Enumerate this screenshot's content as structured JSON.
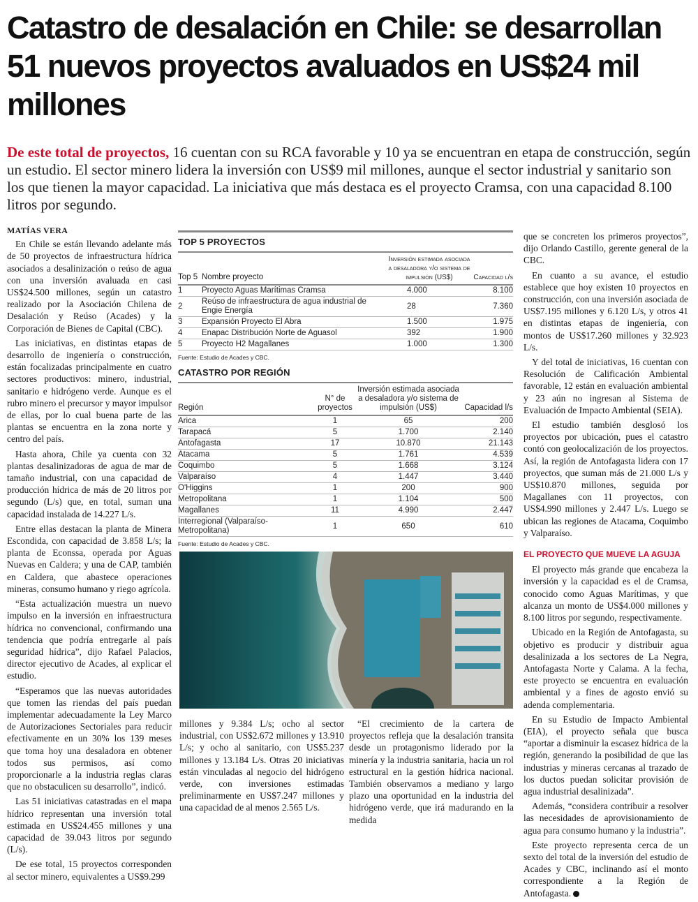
{
  "article": {
    "title": "Catastro de desalación en Chile: se desarrollan 51 nuevos proyectos avaluados en US$24 mil millones",
    "lead_highlight": "De este total de proyectos,",
    "lead_text": " 16 cuentan con su RCA favorable y 10 ya se encuentran en etapa de construcción, según un estudio. El sector minero lidera la inversión con US$9 mil millones, aunque el sector industrial y sanitario son los que tienen la mayor capacidad. La iniciativa que más destaca es el proyecto Cramsa, con una capacidad 8.100 litros por segundo.",
    "byline": "MATÍAS VERA",
    "col_left": [
      "En Chile se están llevando adelante más de 50 proyectos de infraestructura hídrica asociados a desalinización o reúso de agua con una inversión avaluada en casi US$24.500 millones, según un catastro realizado por la Asociación Chilena de Desalación y Reúso (Acades) y la Corporación de Bienes de Capital (CBC).",
      "Las iniciativas, en distintas etapas de desarrollo de ingeniería o construcción, están focalizadas principalmente en cuatro sectores productivos: minero, industrial, sanitario e hidrógeno verde. Aunque es el rubro minero el precursor y mayor impulsor de ellas, por lo cual buena parte de las plantas se encuentra en la zona norte y centro del país.",
      "Hasta ahora, Chile ya cuenta con 32 plantas desalinizadoras de agua de mar de tamaño industrial, con una capacidad de producción hídrica de más de 20 litros por segundo (L/s) que, en total, suman una capacidad instalada de 14.227 L/s.",
      "Entre ellas destacan la planta de Minera Escondida, con capacidad de 3.858 L/s; la planta de Econssa, operada por Aguas Nuevas en Caldera; y una de CAP, también en Caldera, que abastece operaciones mineras, consumo humano y riego agrícola.",
      "“Esta actualización muestra un nuevo impulso en la inversión en infraestructura hídrica no convencional, confirmando una tendencia que podría entregarle al país seguridad hídrica”, dijo Rafael Palacios, director ejecutivo de Acades, al explicar el estudio.",
      "“Esperamos que las nuevas autoridades que tomen las riendas del país puedan implementar adecuadamente la Ley Marco de Autorizaciones Sectoriales para reducir efectivamente en un 30% los 139 meses que toma hoy una desaladora en obtener todos sus permisos, así como proporcionarle a la industria reglas claras que no obstaculicen su desarrollo”, indicó.",
      "Las 51 iniciativas catastradas en el mapa hídrico representan una inversión total estimada en US$24.455 millones y una capacidad de 39.043 litros por segundo (L/s).",
      "De ese total, 15 proyectos corresponden al sector minero, equivalentes a US$9.299"
    ],
    "col_mid1": [
      "millones y 9.384 L/s; ocho al sector industrial, con US$2.672 millones y 13.910 L/s; y ocho al sanitario, con US$5.237 millones y 13.184 L/s. Otras 20 iniciativas están vinculadas al negocio del hidrógeno verde, con inversiones estimadas preliminarmente en US$7.247 millones y una capacidad de al menos 2.565 L/s."
    ],
    "col_mid2": [
      "“El crecimiento de la cartera de proyectos refleja que la desalación transita desde un protagonismo liderado por la minería y la industria sanitaria, hacia un rol estructural en la gestión hídrica nacional. También observamos a mediano y largo plazo una oportunidad en la industria del hidrógeno verde, que irá madurando en la medida"
    ],
    "col_right": [
      "que se concreten los primeros proyectos”, dijo Orlando Castillo, gerente general de la CBC.",
      "En cuanto a su avance, el estudio establece que hoy existen 10 proyectos en construcción, con una inversión asociada de US$7.195 millones y 6.120 L/s, y otros 41 en distintas etapas de ingeniería, con montos de US$17.260 millones y 32.923 L/s.",
      "Y del total de iniciativas, 16 cuentan con Resolución de Calificación Ambiental favorable, 12 están en evaluación ambiental y 23 aún no ingresan al Sistema de Evaluación de Impacto Ambiental (SEIA).",
      "El estudio también desglosó los proyectos por ubicación, pues el catastro contó con geolocalización de los proyectos. Así, la región de Antofagasta lidera con 17 proyectos, que suman más de 21.000 L/s y US$10.870 millones, seguida por Magallanes con 11 proyectos, con US$4.990 millones y 2.447 L/s. Luego se ubican las regiones de Atacama, Coquimbo y Valparaíso."
    ],
    "subhead": "EL PROYECTO QUE MUEVE LA AGUJA",
    "col_right2": [
      "El proyecto más grande que encabeza la inversión y la capacidad es el de Cramsa, conocido como Aguas Marítimas, y que alcanza un monto de US$4.000 millones y 8.100 litros por segundo, respectivamente.",
      "Ubicado en la Región de Antofagasta, su objetivo es producir y distribuir agua desalinizada a los sectores de La Negra, Antofagasta Norte y Calama. A la fecha, este proyecto se encuentra en evaluación ambiental y a fines de agosto envió su adenda complementaria.",
      "En su Estudio de Impacto Ambiental (EIA), el proyecto señala que busca “aportar a disminuir la escasez hídrica de la región, generando la posibilidad de que las industrias y mineras cercanas al trazado de los ductos puedan solicitar provisión de agua industrial desalinizada”.",
      "Además, “considera contribuir a resolver las necesidades de aprovisionamiento de agua para consumo humano y la industria”.",
      "Este proyecto representa cerca de un sexto del total de la inversión del estudio de Acades y CBC, inclinando así el monto correspondiente a la Región de Antofagasta."
    ]
  },
  "top5": {
    "title": "TOP 5 PROYECTOS",
    "headers": [
      "Top 5",
      "Nombre proyecto",
      "Inversión estimada asociada a desaladora y/o sistema de impulsión (US$)",
      "Capacidad l/s"
    ],
    "rows": [
      [
        "1",
        "Proyecto Aguas Marítimas Cramsa",
        "4.000",
        "8.100"
      ],
      [
        "2",
        "Reúso de infraestructura de agua industrial de Engie Energía",
        "28",
        "7.360"
      ],
      [
        "3",
        "Expansión Proyecto El Abra",
        "1.500",
        "1.975"
      ],
      [
        "4",
        "Enapac Distribución Norte de Aguasol",
        "392",
        "1.900"
      ],
      [
        "5",
        "Proyecto H2 Magallanes",
        "1.000",
        "1.300"
      ]
    ],
    "source": "Fuente: Estudio de Acades y CBC."
  },
  "regions": {
    "title": "CATASTRO POR REGIÓN",
    "headers": [
      "Región",
      "N° de proyectos",
      "Inversión estimada asociada a desaladora y/o sistema de impulsión (US$)",
      "Capacidad l/s"
    ],
    "rows": [
      [
        "Arica",
        "1",
        "65",
        "200"
      ],
      [
        "Tarapacá",
        "5",
        "1.700",
        "2.140"
      ],
      [
        "Antofagasta",
        "17",
        "10.870",
        "21.143"
      ],
      [
        "Atacama",
        "5",
        "1.761",
        "4.539"
      ],
      [
        "Coquimbo",
        "5",
        "1.668",
        "3.124"
      ],
      [
        "Valparaíso",
        "4",
        "1.447",
        "3.440"
      ],
      [
        "O'Higgins",
        "1",
        "200",
        "900"
      ],
      [
        "Metropolitana",
        "1",
        "1.104",
        "500"
      ],
      [
        "Magallanes",
        "11",
        "4.990",
        "2.447"
      ],
      [
        "Interregional (Valparaíso- Metropolitana)",
        "1",
        "650",
        "610"
      ]
    ],
    "source": "Fuente: Estudio de Acades y CBC."
  },
  "colors": {
    "accent_red": "#c8102e"
  }
}
